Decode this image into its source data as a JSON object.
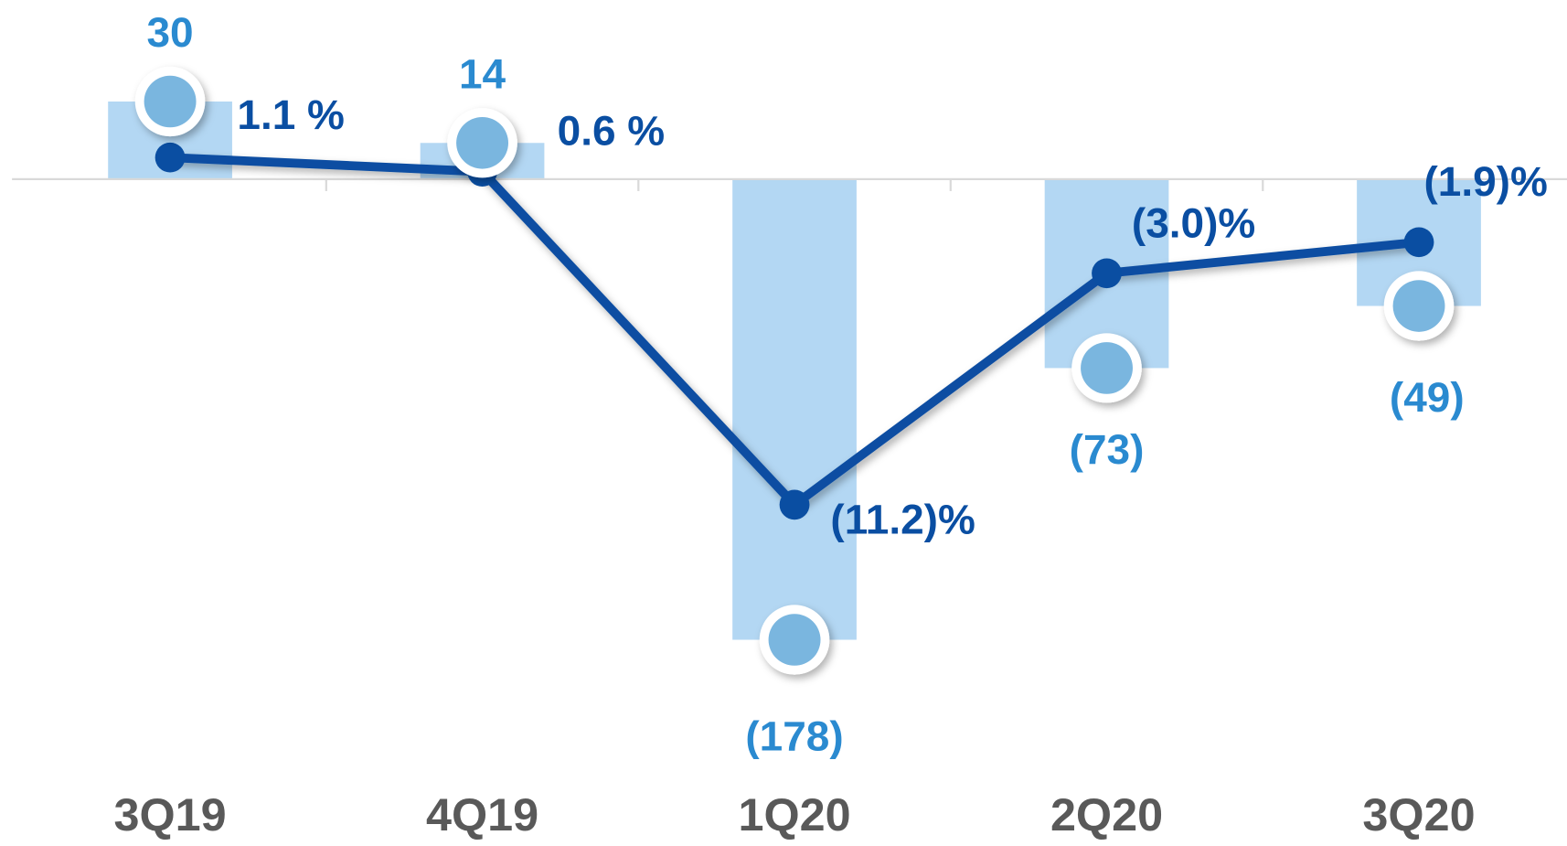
{
  "chart_data": {
    "type": "bar",
    "categories": [
      "3Q19",
      "4Q19",
      "1Q20",
      "2Q20",
      "3Q20"
    ],
    "series": [
      {
        "type": "bar",
        "color": "#b3d7f3",
        "marker_color": "#7ab6df",
        "label_color": "#2a8ad0",
        "values": [
          30,
          14,
          -178,
          -73,
          -49
        ],
        "value_labels": [
          "30",
          "14",
          "(178)",
          "(73)",
          "(49)"
        ]
      },
      {
        "type": "line",
        "axis": "y2",
        "color": "#0a4ea2",
        "values": [
          1.1,
          0.6,
          -11.2,
          -3.0,
          -1.9
        ],
        "value_labels": [
          "1.1 %",
          "0.6 %",
          "(11.2)%",
          "(3.0)%",
          "(1.9)%"
        ]
      }
    ],
    "ylim": [
      -200,
      40
    ],
    "y2lim": [
      -18,
      4
    ]
  }
}
